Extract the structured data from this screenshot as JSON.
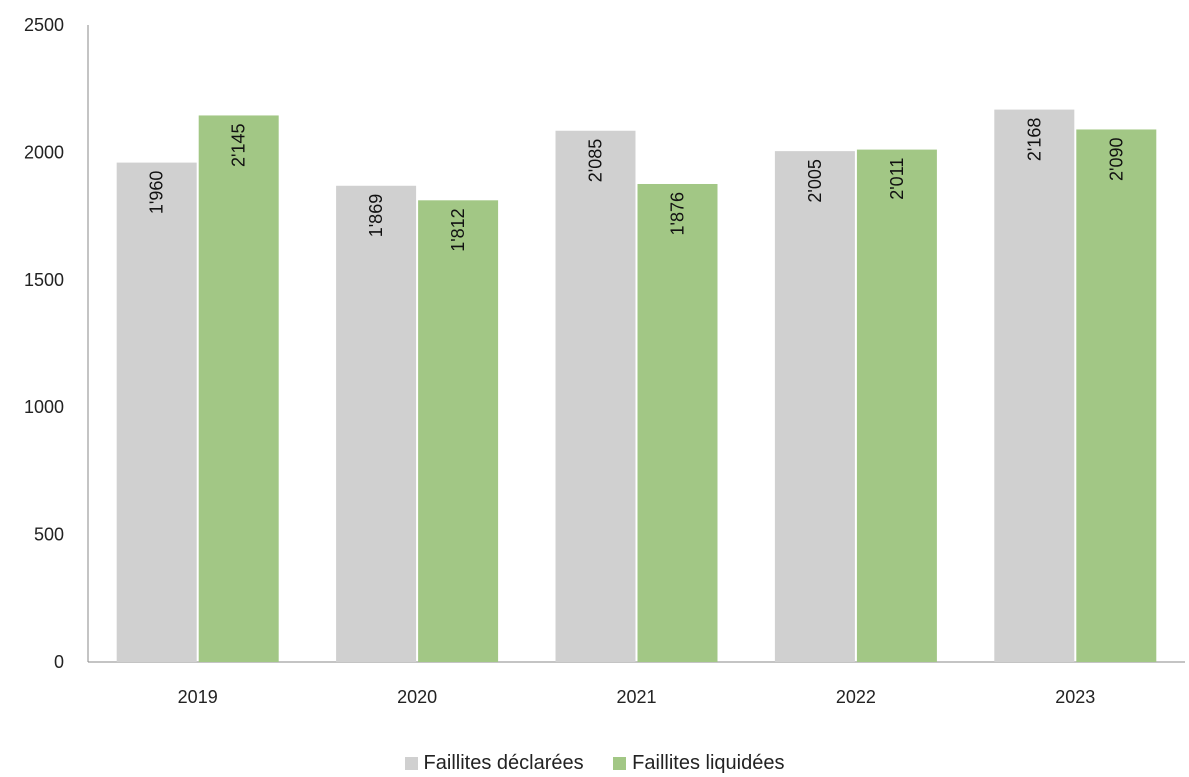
{
  "chart_data": {
    "type": "bar",
    "categories": [
      "2019",
      "2020",
      "2021",
      "2022",
      "2023"
    ],
    "series": [
      {
        "name": "Faillites déclarées",
        "color": "#d0d0d0",
        "values": [
          1960,
          1869,
          2085,
          2005,
          2168
        ],
        "labels": [
          "1'960",
          "1'869",
          "2'085",
          "2'005",
          "2'168"
        ]
      },
      {
        "name": "Faillites liquidées",
        "color": "#a2c785",
        "values": [
          2145,
          1812,
          1876,
          2011,
          2090
        ],
        "labels": [
          "2'145",
          "1'812",
          "1'876",
          "2'011",
          "2'090"
        ]
      }
    ],
    "title": "",
    "xlabel": "",
    "ylabel": "",
    "ylim": [
      0,
      2500
    ],
    "yticks": [
      0,
      500,
      1000,
      1500,
      2000,
      2500
    ],
    "grid": false,
    "legend_position": "bottom-center",
    "data_labels": "rotated-vertical-inside-top"
  }
}
